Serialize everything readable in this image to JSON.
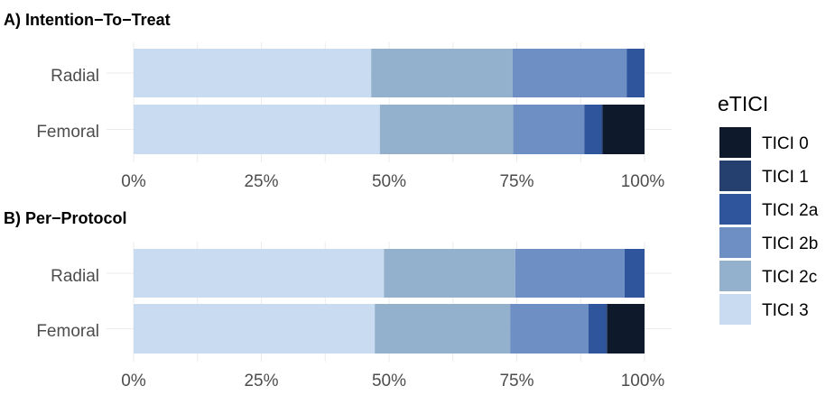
{
  "chart_data": [
    {
      "type": "bar",
      "orientation": "horizontal",
      "stacked": true,
      "title": "A) Intention−To−Treat",
      "categories": [
        "Radial",
        "Femoral"
      ],
      "x_ticks": [
        "0%",
        "25%",
        "50%",
        "75%",
        "100%"
      ],
      "xlim": [
        0,
        100
      ],
      "grid": true,
      "series": [
        {
          "name": "TICI 3",
          "values": [
            46.5,
            48.2
          ]
        },
        {
          "name": "TICI 2c",
          "values": [
            27.7,
            26.1
          ]
        },
        {
          "name": "TICI 2b",
          "values": [
            22.3,
            13.9
          ]
        },
        {
          "name": "TICI 2a",
          "values": [
            3.5,
            3.4
          ]
        },
        {
          "name": "TICI 1",
          "values": [
            0,
            0.2
          ]
        },
        {
          "name": "TICI 0",
          "values": [
            0,
            8.2
          ]
        }
      ]
    },
    {
      "type": "bar",
      "orientation": "horizontal",
      "stacked": true,
      "title": "B) Per−Protocol",
      "categories": [
        "Radial",
        "Femoral"
      ],
      "x_ticks": [
        "0%",
        "25%",
        "50%",
        "75%",
        "100%"
      ],
      "xlim": [
        0,
        100
      ],
      "grid": true,
      "series": [
        {
          "name": "TICI 3",
          "values": [
            49.0,
            47.2
          ]
        },
        {
          "name": "TICI 2c",
          "values": [
            25.7,
            26.5
          ]
        },
        {
          "name": "TICI 2b",
          "values": [
            21.4,
            15.3
          ]
        },
        {
          "name": "TICI 2a",
          "values": [
            3.9,
            3.5
          ]
        },
        {
          "name": "TICI 1",
          "values": [
            0,
            0.2
          ]
        },
        {
          "name": "TICI 0",
          "values": [
            0,
            7.3
          ]
        }
      ]
    }
  ],
  "legend": {
    "title": "eTICI",
    "placement": "right",
    "items": [
      {
        "label": "TICI 0",
        "color": "#0e1a2c"
      },
      {
        "label": "TICI 1",
        "color": "#253f6f"
      },
      {
        "label": "TICI 2a",
        "color": "#2f569d"
      },
      {
        "label": "TICI 2b",
        "color": "#6e8fc4"
      },
      {
        "label": "TICI 2c",
        "color": "#93b1cc"
      },
      {
        "label": "TICI 3",
        "color": "#c8dbf0"
      }
    ]
  }
}
